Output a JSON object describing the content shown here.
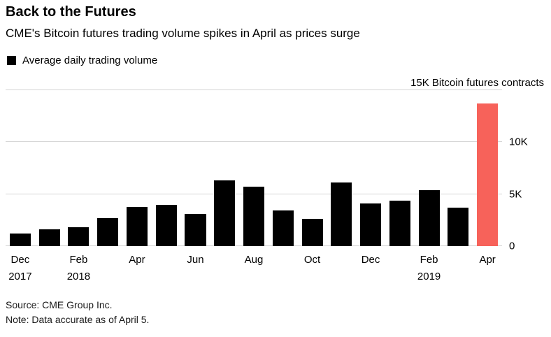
{
  "header": {
    "title": "Back to the Futures",
    "subtitle": "CME's Bitcoin futures trading volume spikes in April as prices surge"
  },
  "legend": {
    "label": "Average daily trading volume",
    "swatch_color": "#000000"
  },
  "chart_data": {
    "type": "bar",
    "title": "Back to the Futures",
    "subtitle": "CME's Bitcoin futures trading volume spikes in April as prices surge",
    "legend_entries": [
      "Average daily trading volume"
    ],
    "legend_position": "top-left",
    "grid": "horizontal",
    "categories": [
      "Dec 2017",
      "Jan 2018",
      "Feb 2018",
      "Mar 2018",
      "Apr 2018",
      "May 2018",
      "Jun 2018",
      "Jul 2018",
      "Aug 2018",
      "Sep 2018",
      "Oct 2018",
      "Nov 2018",
      "Dec 2018",
      "Jan 2019",
      "Feb 2019",
      "Mar 2019",
      "Apr 2019"
    ],
    "values": [
      1200,
      1600,
      1800,
      2700,
      3800,
      4000,
      3100,
      6300,
      5700,
      3400,
      2600,
      6100,
      4100,
      4400,
      5400,
      3700,
      13700
    ],
    "ylabel": "Bitcoin futures contracts",
    "ylim": [
      0,
      15000
    ],
    "yticks": [
      {
        "value": 0,
        "label": "0"
      },
      {
        "value": 5000,
        "label": "5K"
      },
      {
        "value": 10000,
        "label": "10K"
      },
      {
        "value": 15000,
        "label": ""
      }
    ],
    "top_axis_label": "15K Bitcoin futures contracts",
    "bar_color": "#000000",
    "highlight_index": 16,
    "highlight_color": "#f7625a",
    "x_ticks": [
      {
        "month": "Dec",
        "year": "2017"
      },
      {
        "month": "",
        "year": ""
      },
      {
        "month": "Feb",
        "year": "2018"
      },
      {
        "month": "",
        "year": ""
      },
      {
        "month": "Apr",
        "year": ""
      },
      {
        "month": "",
        "year": ""
      },
      {
        "month": "Jun",
        "year": ""
      },
      {
        "month": "",
        "year": ""
      },
      {
        "month": "Aug",
        "year": ""
      },
      {
        "month": "",
        "year": ""
      },
      {
        "month": "Oct",
        "year": ""
      },
      {
        "month": "",
        "year": ""
      },
      {
        "month": "Dec",
        "year": ""
      },
      {
        "month": "",
        "year": ""
      },
      {
        "month": "Feb",
        "year": "2019"
      },
      {
        "month": "",
        "year": ""
      },
      {
        "month": "Apr",
        "year": ""
      }
    ]
  },
  "footer": {
    "source": "Source: CME Group Inc.",
    "note": "Note: Data accurate as of April 5."
  }
}
